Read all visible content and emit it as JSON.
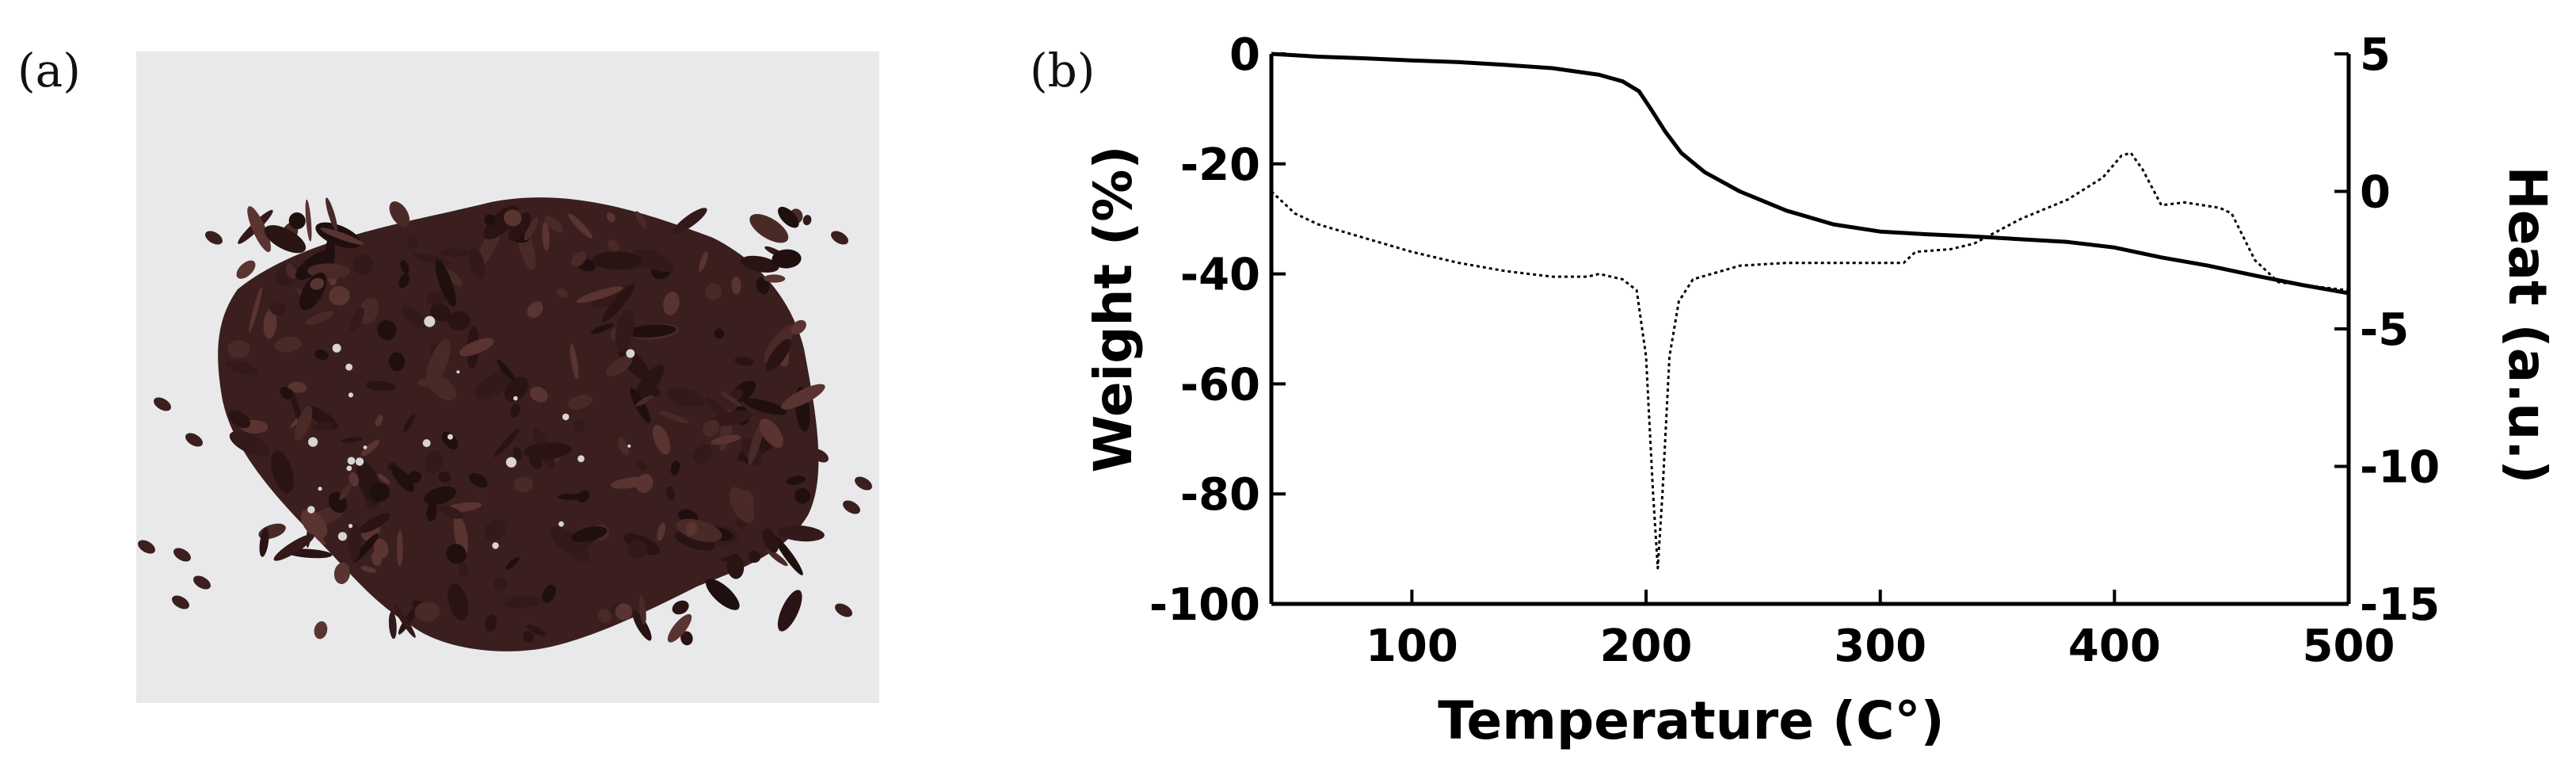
{
  "panels": {
    "a": "(a)",
    "b": "(b)"
  },
  "photo": {
    "subject": "dark brown granular powder on white background",
    "bg_color": "#e9e9eb",
    "powder_color": "#3a1f1e"
  },
  "chart_data": {
    "type": "line",
    "title": "",
    "xlabel": "Temperature (C°)",
    "ylabel": "Weight (%)",
    "y2label": "Heat (a.u.)",
    "xlim": [
      40,
      500
    ],
    "ylim": [
      -100,
      0
    ],
    "y2lim": [
      -15,
      5
    ],
    "x_ticks": [
      100,
      200,
      300,
      400,
      500
    ],
    "y_ticks": [
      0,
      -20,
      -40,
      -60,
      -80,
      -100
    ],
    "y2_ticks": [
      5,
      0,
      -5,
      -10,
      -15
    ],
    "grid": false,
    "legend": "none",
    "series": [
      {
        "axis": "left",
        "style": "solid",
        "points": [
          [
            40,
            0
          ],
          [
            60,
            -0.5
          ],
          [
            80,
            -0.8
          ],
          [
            100,
            -1.2
          ],
          [
            120,
            -1.5
          ],
          [
            140,
            -2
          ],
          [
            160,
            -2.6
          ],
          [
            180,
            -3.8
          ],
          [
            190,
            -5
          ],
          [
            197,
            -6.8
          ],
          [
            202,
            -10
          ],
          [
            208,
            -14
          ],
          [
            215,
            -18
          ],
          [
            225,
            -21.5
          ],
          [
            240,
            -25
          ],
          [
            260,
            -28.5
          ],
          [
            280,
            -31
          ],
          [
            300,
            -32.3
          ],
          [
            320,
            -32.8
          ],
          [
            340,
            -33.2
          ],
          [
            360,
            -33.7
          ],
          [
            380,
            -34.2
          ],
          [
            400,
            -35.2
          ],
          [
            420,
            -37
          ],
          [
            440,
            -38.5
          ],
          [
            460,
            -40.3
          ],
          [
            480,
            -42
          ],
          [
            500,
            -43.5
          ]
        ]
      },
      {
        "axis": "right",
        "style": "dotted",
        "points": [
          [
            40,
            0
          ],
          [
            50,
            -0.8
          ],
          [
            60,
            -1.2
          ],
          [
            80,
            -1.7
          ],
          [
            100,
            -2.2
          ],
          [
            120,
            -2.6
          ],
          [
            140,
            -2.9
          ],
          [
            160,
            -3.1
          ],
          [
            175,
            -3.1
          ],
          [
            180,
            -3
          ],
          [
            190,
            -3.2
          ],
          [
            196,
            -3.6
          ],
          [
            200,
            -6
          ],
          [
            203,
            -11
          ],
          [
            205,
            -13.7
          ],
          [
            207,
            -11
          ],
          [
            210,
            -6
          ],
          [
            214,
            -4
          ],
          [
            220,
            -3.2
          ],
          [
            240,
            -2.7
          ],
          [
            260,
            -2.6
          ],
          [
            280,
            -2.6
          ],
          [
            300,
            -2.6
          ],
          [
            310,
            -2.6
          ],
          [
            315,
            -2.2
          ],
          [
            330,
            -2.1
          ],
          [
            340,
            -1.9
          ],
          [
            360,
            -1
          ],
          [
            380,
            -0.3
          ],
          [
            395,
            0.5
          ],
          [
            403,
            1.3
          ],
          [
            407,
            1.4
          ],
          [
            412,
            0.8
          ],
          [
            420,
            -0.5
          ],
          [
            430,
            -0.4
          ],
          [
            445,
            -0.6
          ],
          [
            450,
            -0.8
          ],
          [
            460,
            -2.5
          ],
          [
            470,
            -3.3
          ],
          [
            480,
            -3.4
          ],
          [
            490,
            -3.5
          ],
          [
            500,
            -3.6
          ]
        ]
      }
    ]
  }
}
